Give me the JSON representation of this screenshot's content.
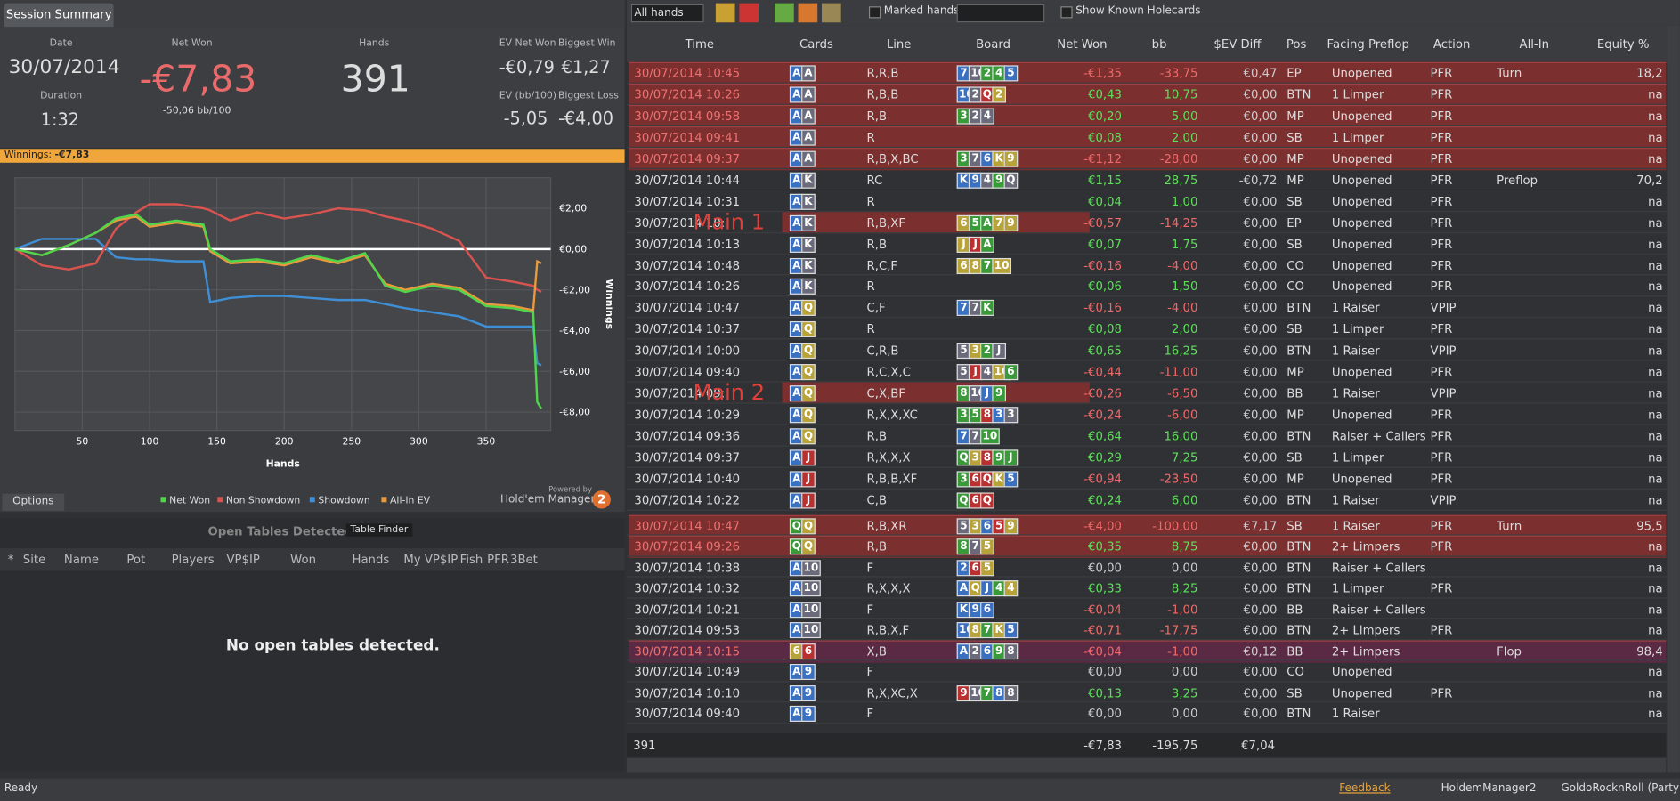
{
  "tab": "Session Summary",
  "summary": {
    "date_label": "Date",
    "date": "30/07/2014",
    "duration_label": "Duration",
    "duration": "1:32",
    "net_won_label": "Net Won",
    "net_won": "-€7,83",
    "net_won_bb": "-50,06 bb/100",
    "hands_label": "Hands",
    "hands": "391",
    "ev_net_won_label": "EV Net Won",
    "ev_net_won": "-€0,79",
    "biggest_win_label": "Biggest Win",
    "biggest_win": "€1,27",
    "ev_bb_label": "EV (bb/100)",
    "ev_bb": "-5,05",
    "biggest_loss_label": "Biggest Loss",
    "biggest_loss": "-€4,00"
  },
  "winnings_bar": {
    "label": "Winnings:",
    "value": "-€7,83"
  },
  "chart_data": {
    "type": "line",
    "xlabel": "Hands",
    "ylabel": "Winnings",
    "x": [
      0,
      20,
      40,
      60,
      75,
      90,
      100,
      120,
      140,
      145,
      160,
      180,
      200,
      220,
      240,
      260,
      275,
      290,
      310,
      330,
      350,
      370,
      385,
      388,
      391
    ],
    "xlim": [
      0,
      398
    ],
    "xticks": [
      50,
      100,
      150,
      200,
      250,
      300,
      350
    ],
    "ylim": [
      -8.9,
      3.5
    ],
    "yticks": [
      {
        "value": 2,
        "label": "€2,00"
      },
      {
        "value": 0,
        "label": "€0,00"
      },
      {
        "value": -2,
        "label": "-€2,00"
      },
      {
        "value": -4,
        "label": "-€4,00"
      },
      {
        "value": -6,
        "label": "-€6,00"
      },
      {
        "value": -8,
        "label": "-€8,00"
      }
    ],
    "grid": true,
    "series": [
      {
        "name": "Net Won",
        "color": "#4fd64a",
        "values": [
          0,
          -0.3,
          0.2,
          0.8,
          1.5,
          1.7,
          1.2,
          1.4,
          1.2,
          0,
          -0.6,
          -0.5,
          -0.7,
          -0.3,
          -0.6,
          -0.2,
          -1.8,
          -2.1,
          -1.8,
          -2.0,
          -2.8,
          -2.9,
          -3.1,
          -7.5,
          -7.83
        ]
      },
      {
        "name": "Non Showdown",
        "color": "#d9534f",
        "values": [
          0,
          -0.8,
          -1.0,
          -0.7,
          1.0,
          1.8,
          2.2,
          2.2,
          2.0,
          1.9,
          1.4,
          1.8,
          1.5,
          1.7,
          2.0,
          1.9,
          1.6,
          1.4,
          1.0,
          0.4,
          -1.4,
          -1.6,
          -1.8,
          -2.0,
          -2.1
        ]
      },
      {
        "name": "Showdown",
        "color": "#3f8fd6",
        "values": [
          0,
          0.5,
          0.5,
          0.5,
          -0.4,
          -0.5,
          -0.5,
          -0.6,
          -0.6,
          -2.6,
          -2.4,
          -2.3,
          -2.3,
          -2.4,
          -2.5,
          -2.5,
          -2.7,
          -2.9,
          -3.1,
          -3.3,
          -3.8,
          -3.8,
          -3.8,
          -5.6,
          -5.7
        ]
      },
      {
        "name": "All-In EV",
        "color": "#e89a3c",
        "values": [
          0,
          -0.3,
          0.2,
          0.8,
          1.4,
          1.6,
          1.1,
          1.3,
          1.1,
          -0.1,
          -0.7,
          -0.6,
          -0.8,
          -0.4,
          -0.7,
          -0.3,
          -1.7,
          -2.0,
          -1.7,
          -1.9,
          -2.7,
          -2.8,
          -3.0,
          -0.6,
          -0.7
        ]
      }
    ]
  },
  "chart_footer": {
    "options": "Options",
    "powered_by": "Powered by",
    "brand": "Hold'em Manager",
    "brand_num": "2"
  },
  "open_tables": {
    "title": "Open Tables Detected",
    "button": "Table Finder",
    "columns": [
      "*",
      "Site",
      "Name",
      "Pot",
      "Players",
      "VP$IP",
      "Won",
      "Hands",
      "My VP$IP",
      "Fish",
      "PFR",
      "3Bet"
    ],
    "empty": "No open tables detected."
  },
  "toolbar": {
    "filter": "All hands",
    "marked": "Marked hands",
    "known": "Show Known Holecards"
  },
  "table": {
    "columns": [
      "Time",
      "Cards",
      "Line",
      "Board",
      "Net Won",
      "bb",
      "$EV Diff",
      "Pos",
      "Facing Preflop",
      "Action",
      "All-In",
      "Equity %"
    ],
    "groups": [
      {
        "rows": [
          {
            "time": "30/07/2014 10:45",
            "cards": [
              "A",
              "A"
            ],
            "line": "R,R,B",
            "board": [
              "7",
              "10",
              "2",
              "4",
              "5"
            ],
            "net_won": "-€1,35",
            "bb": "-33,75",
            "ev_diff": "€0,47",
            "pos": "EP",
            "facing": "Unopened",
            "action": "PFR",
            "all_in": "Turn",
            "equity": "18,2",
            "highlight": "#7b2f2f"
          },
          {
            "time": "30/07/2014 10:26",
            "cards": [
              "A",
              "A"
            ],
            "line": "R,B,B",
            "board": [
              "10",
              "2",
              "Q",
              "2"
            ],
            "net_won": "€0,43",
            "bb": "10,75",
            "ev_diff": "€0,00",
            "pos": "BTN",
            "facing": "1 Limper",
            "action": "PFR",
            "equity": "na",
            "highlight": "#7b2f2f"
          },
          {
            "time": "30/07/2014 09:58",
            "cards": [
              "A",
              "A"
            ],
            "line": "R,B",
            "board": [
              "3",
              "2",
              "4"
            ],
            "net_won": "€0,20",
            "bb": "5,00",
            "ev_diff": "€0,00",
            "pos": "MP",
            "facing": "Unopened",
            "action": "PFR",
            "equity": "na",
            "highlight": "#7b2f2f"
          },
          {
            "time": "30/07/2014 09:41",
            "cards": [
              "A",
              "A"
            ],
            "line": "R",
            "board": [],
            "net_won": "€0,08",
            "bb": "2,00",
            "ev_diff": "€0,00",
            "pos": "SB",
            "facing": "1 Limper",
            "action": "PFR",
            "equity": "na",
            "highlight": "#7b2f2f"
          },
          {
            "time": "30/07/2014 09:37",
            "cards": [
              "A",
              "A"
            ],
            "line": "R,B,X,BC",
            "board": [
              "3",
              "7",
              "6",
              "K",
              "9"
            ],
            "net_won": "-€1,12",
            "bb": "-28,00",
            "ev_diff": "€0,00",
            "pos": "MP",
            "facing": "Unopened",
            "action": "PFR",
            "equity": "na",
            "highlight": "#7b2f2f"
          },
          {
            "time": "30/07/2014 10:44",
            "cards": [
              "A",
              "K"
            ],
            "line": "RC",
            "board": [
              "K",
              "9",
              "4",
              "9",
              "Q"
            ],
            "net_won": "€1,15",
            "bb": "28,75",
            "ev_diff": "-€0,72",
            "pos": "MP",
            "facing": "Unopened",
            "action": "PFR",
            "all_in": "Preflop",
            "equity": "70,2"
          },
          {
            "time": "30/07/2014 10:31",
            "cards": [
              "A",
              "K"
            ],
            "line": "R",
            "board": [],
            "net_won": "€0,04",
            "bb": "1,00",
            "ev_diff": "€0,00",
            "pos": "SB",
            "facing": "Unopened",
            "action": "PFR",
            "equity": "na"
          },
          {
            "time": "30/07/2014 10:",
            "cards": [
              "A",
              "K"
            ],
            "line": "R,B,XF",
            "board": [
              "6",
              "5",
              "A",
              "7",
              "9"
            ],
            "net_won": "-€0,57",
            "bb": "-14,25",
            "ev_diff": "€0,00",
            "pos": "EP",
            "facing": "Unopened",
            "action": "PFR",
            "equity": "na",
            "overlay": "Main 1"
          },
          {
            "time": "30/07/2014 10:13",
            "cards": [
              "A",
              "K"
            ],
            "line": "R,B",
            "board": [
              "J",
              "J",
              "A"
            ],
            "net_won": "€0,07",
            "bb": "1,75",
            "ev_diff": "€0,00",
            "pos": "SB",
            "facing": "Unopened",
            "action": "PFR",
            "equity": "na"
          },
          {
            "time": "30/07/2014 10:48",
            "cards": [
              "A",
              "K"
            ],
            "line": "R,C,F",
            "board": [
              "6",
              "8",
              "7",
              "10"
            ],
            "net_won": "-€0,16",
            "bb": "-4,00",
            "ev_diff": "€0,00",
            "pos": "CO",
            "facing": "Unopened",
            "action": "PFR",
            "equity": "na"
          },
          {
            "time": "30/07/2014 10:26",
            "cards": [
              "A",
              "K"
            ],
            "line": "R",
            "board": [],
            "net_won": "€0,06",
            "bb": "1,50",
            "ev_diff": "€0,00",
            "pos": "CO",
            "facing": "Unopened",
            "action": "PFR",
            "equity": "na"
          },
          {
            "time": "30/07/2014 10:47",
            "cards": [
              "A",
              "Q"
            ],
            "line": "C,F",
            "board": [
              "7",
              "7",
              "K"
            ],
            "net_won": "-€0,16",
            "bb": "-4,00",
            "ev_diff": "€0,00",
            "pos": "BTN",
            "facing": "1 Raiser",
            "action": "VPIP",
            "equity": "na"
          },
          {
            "time": "30/07/2014 10:37",
            "cards": [
              "A",
              "Q"
            ],
            "line": "R",
            "board": [],
            "net_won": "€0,08",
            "bb": "2,00",
            "ev_diff": "€0,00",
            "pos": "SB",
            "facing": "1 Limper",
            "action": "PFR",
            "equity": "na"
          },
          {
            "time": "30/07/2014 10:00",
            "cards": [
              "A",
              "Q"
            ],
            "line": "C,R,B",
            "board": [
              "5",
              "3",
              "2",
              "J"
            ],
            "net_won": "€0,65",
            "bb": "16,25",
            "ev_diff": "€0,00",
            "pos": "BTN",
            "facing": "1 Raiser",
            "action": "VPIP",
            "equity": "na"
          },
          {
            "time": "30/07/2014 09:40",
            "cards": [
              "A",
              "Q"
            ],
            "line": "R,C,X,C",
            "board": [
              "5",
              "J",
              "4",
              "10",
              "6"
            ],
            "net_won": "-€0,44",
            "bb": "-11,00",
            "ev_diff": "€0,00",
            "pos": "MP",
            "facing": "Unopened",
            "action": "PFR",
            "equity": "na"
          },
          {
            "time": "30/07/2014 09:",
            "cards": [
              "A",
              "Q"
            ],
            "line": "C,X,BF",
            "board": [
              "8",
              "10",
              "J",
              "9"
            ],
            "net_won": "-€0,26",
            "bb": "-6,50",
            "ev_diff": "€0,00",
            "pos": "BB",
            "facing": "1 Raiser",
            "action": "VPIP",
            "equity": "na",
            "overlay": "Main 2"
          },
          {
            "time": "30/07/2014 10:29",
            "cards": [
              "A",
              "Q"
            ],
            "line": "R,X,X,XC",
            "board": [
              "3",
              "5",
              "8",
              "3",
              "3"
            ],
            "net_won": "-€0,24",
            "bb": "-6,00",
            "ev_diff": "€0,00",
            "pos": "MP",
            "facing": "Unopened",
            "action": "PFR",
            "equity": "na"
          },
          {
            "time": "30/07/2014 09:36",
            "cards": [
              "A",
              "Q"
            ],
            "line": "R,B",
            "board": [
              "7",
              "7",
              "10"
            ],
            "net_won": "€0,64",
            "bb": "16,00",
            "ev_diff": "€0,00",
            "pos": "BTN",
            "facing": "Raiser + Callers",
            "action": "PFR",
            "equity": "na"
          },
          {
            "time": "30/07/2014 09:37",
            "cards": [
              "A",
              "J"
            ],
            "line": "R,X,X,X",
            "board": [
              "Q",
              "3",
              "8",
              "9",
              "J"
            ],
            "net_won": "€0,29",
            "bb": "7,25",
            "ev_diff": "€0,00",
            "pos": "SB",
            "facing": "1 Limper",
            "action": "PFR",
            "equity": "na"
          },
          {
            "time": "30/07/2014 10:40",
            "cards": [
              "A",
              "J"
            ],
            "line": "R,B,B,XF",
            "board": [
              "3",
              "6",
              "Q",
              "K",
              "5"
            ],
            "net_won": "-€0,94",
            "bb": "-23,50",
            "ev_diff": "€0,00",
            "pos": "MP",
            "facing": "Unopened",
            "action": "PFR",
            "equity": "na"
          },
          {
            "time": "30/07/2014 10:22",
            "cards": [
              "A",
              "J"
            ],
            "line": "C,B",
            "board": [
              "Q",
              "6",
              "Q"
            ],
            "net_won": "€0,24",
            "bb": "6,00",
            "ev_diff": "€0,00",
            "pos": "BTN",
            "facing": "1 Raiser",
            "action": "VPIP",
            "equity": "na"
          }
        ]
      },
      {
        "rows": [
          {
            "time": "30/07/2014 10:47",
            "cards": [
              "Q",
              "Q"
            ],
            "line": "R,B,XR",
            "board": [
              "5",
              "3",
              "6",
              "5",
              "9"
            ],
            "net_won": "-€4,00",
            "bb": "-100,00",
            "ev_diff": "€7,17",
            "pos": "SB",
            "facing": "1 Raiser",
            "action": "PFR",
            "all_in": "Turn",
            "equity": "95,5",
            "highlight": "#7b2f2f"
          },
          {
            "time": "30/07/2014 09:26",
            "cards": [
              "Q",
              "Q"
            ],
            "line": "R,B",
            "board": [
              "8",
              "7",
              "5"
            ],
            "net_won": "€0,35",
            "bb": "8,75",
            "ev_diff": "€0,00",
            "pos": "BTN",
            "facing": "2+ Limpers",
            "action": "PFR",
            "equity": "na",
            "highlight": "#7b2f2f"
          },
          {
            "time": "30/07/2014 10:38",
            "cards": [
              "A",
              "10"
            ],
            "line": "F",
            "board": [
              "2",
              "6",
              "5"
            ],
            "net_won": "€0,00",
            "bb": "0,00",
            "ev_diff": "€0,00",
            "pos": "BTN",
            "facing": "Raiser + Callers",
            "equity": "na"
          },
          {
            "time": "30/07/2014 10:32",
            "cards": [
              "A",
              "10"
            ],
            "line": "R,X,X,X",
            "board": [
              "A",
              "Q",
              "J",
              "4",
              "4"
            ],
            "net_won": "€0,33",
            "bb": "8,25",
            "ev_diff": "€0,00",
            "pos": "BTN",
            "facing": "1 Limper",
            "action": "PFR",
            "equity": "na"
          },
          {
            "time": "30/07/2014 10:21",
            "cards": [
              "A",
              "10"
            ],
            "line": "F",
            "board": [
              "K",
              "9",
              "6"
            ],
            "net_won": "-€0,04",
            "bb": "-1,00",
            "ev_diff": "€0,00",
            "pos": "BB",
            "facing": "Raiser + Callers",
            "equity": "na"
          },
          {
            "time": "30/07/2014 09:53",
            "cards": [
              "A",
              "10"
            ],
            "line": "R,B,X,F",
            "board": [
              "10",
              "8",
              "7",
              "K",
              "5"
            ],
            "net_won": "-€0,71",
            "bb": "-17,75",
            "ev_diff": "€0,00",
            "pos": "BTN",
            "facing": "2+ Limpers",
            "action": "PFR",
            "equity": "na"
          },
          {
            "time": "30/07/2014 10:15",
            "cards": [
              "6",
              "6"
            ],
            "line": "X,B",
            "board": [
              "A",
              "2",
              "6",
              "9",
              "8"
            ],
            "net_won": "-€0,04",
            "bb": "-1,00",
            "ev_diff": "€0,12",
            "pos": "BB",
            "facing": "2+ Limpers",
            "all_in": "Flop",
            "equity": "98,4",
            "highlight": "#5a2a44"
          },
          {
            "time": "30/07/2014 10:49",
            "cards": [
              "A",
              "9"
            ],
            "line": "F",
            "board": [],
            "net_won": "€0,00",
            "bb": "0,00",
            "ev_diff": "€0,00",
            "pos": "CO",
            "facing": "Unopened",
            "equity": "na"
          },
          {
            "time": "30/07/2014 10:10",
            "cards": [
              "A",
              "9"
            ],
            "line": "R,X,XC,X",
            "board": [
              "9",
              "10",
              "7",
              "8",
              "8"
            ],
            "net_won": "€0,13",
            "bb": "3,25",
            "ev_diff": "€0,00",
            "pos": "SB",
            "facing": "Unopened",
            "action": "PFR",
            "equity": "na"
          },
          {
            "time": "30/07/2014 09:40",
            "cards": [
              "A",
              "9"
            ],
            "line": "F",
            "board": [],
            "net_won": "€0,00",
            "bb": "0,00",
            "ev_diff": "€0,00",
            "pos": "BTN",
            "facing": "1 Raiser",
            "equity": "na"
          }
        ]
      }
    ],
    "totals": {
      "hands": "391",
      "net_won": "-€7,83",
      "bb": "-195,75",
      "ev_diff": "€7,04"
    }
  },
  "status": {
    "ready": "Ready",
    "feedback": "Feedback",
    "app": "HoldemManager2",
    "user": "GoldoRocknRoll (PartyPo"
  }
}
